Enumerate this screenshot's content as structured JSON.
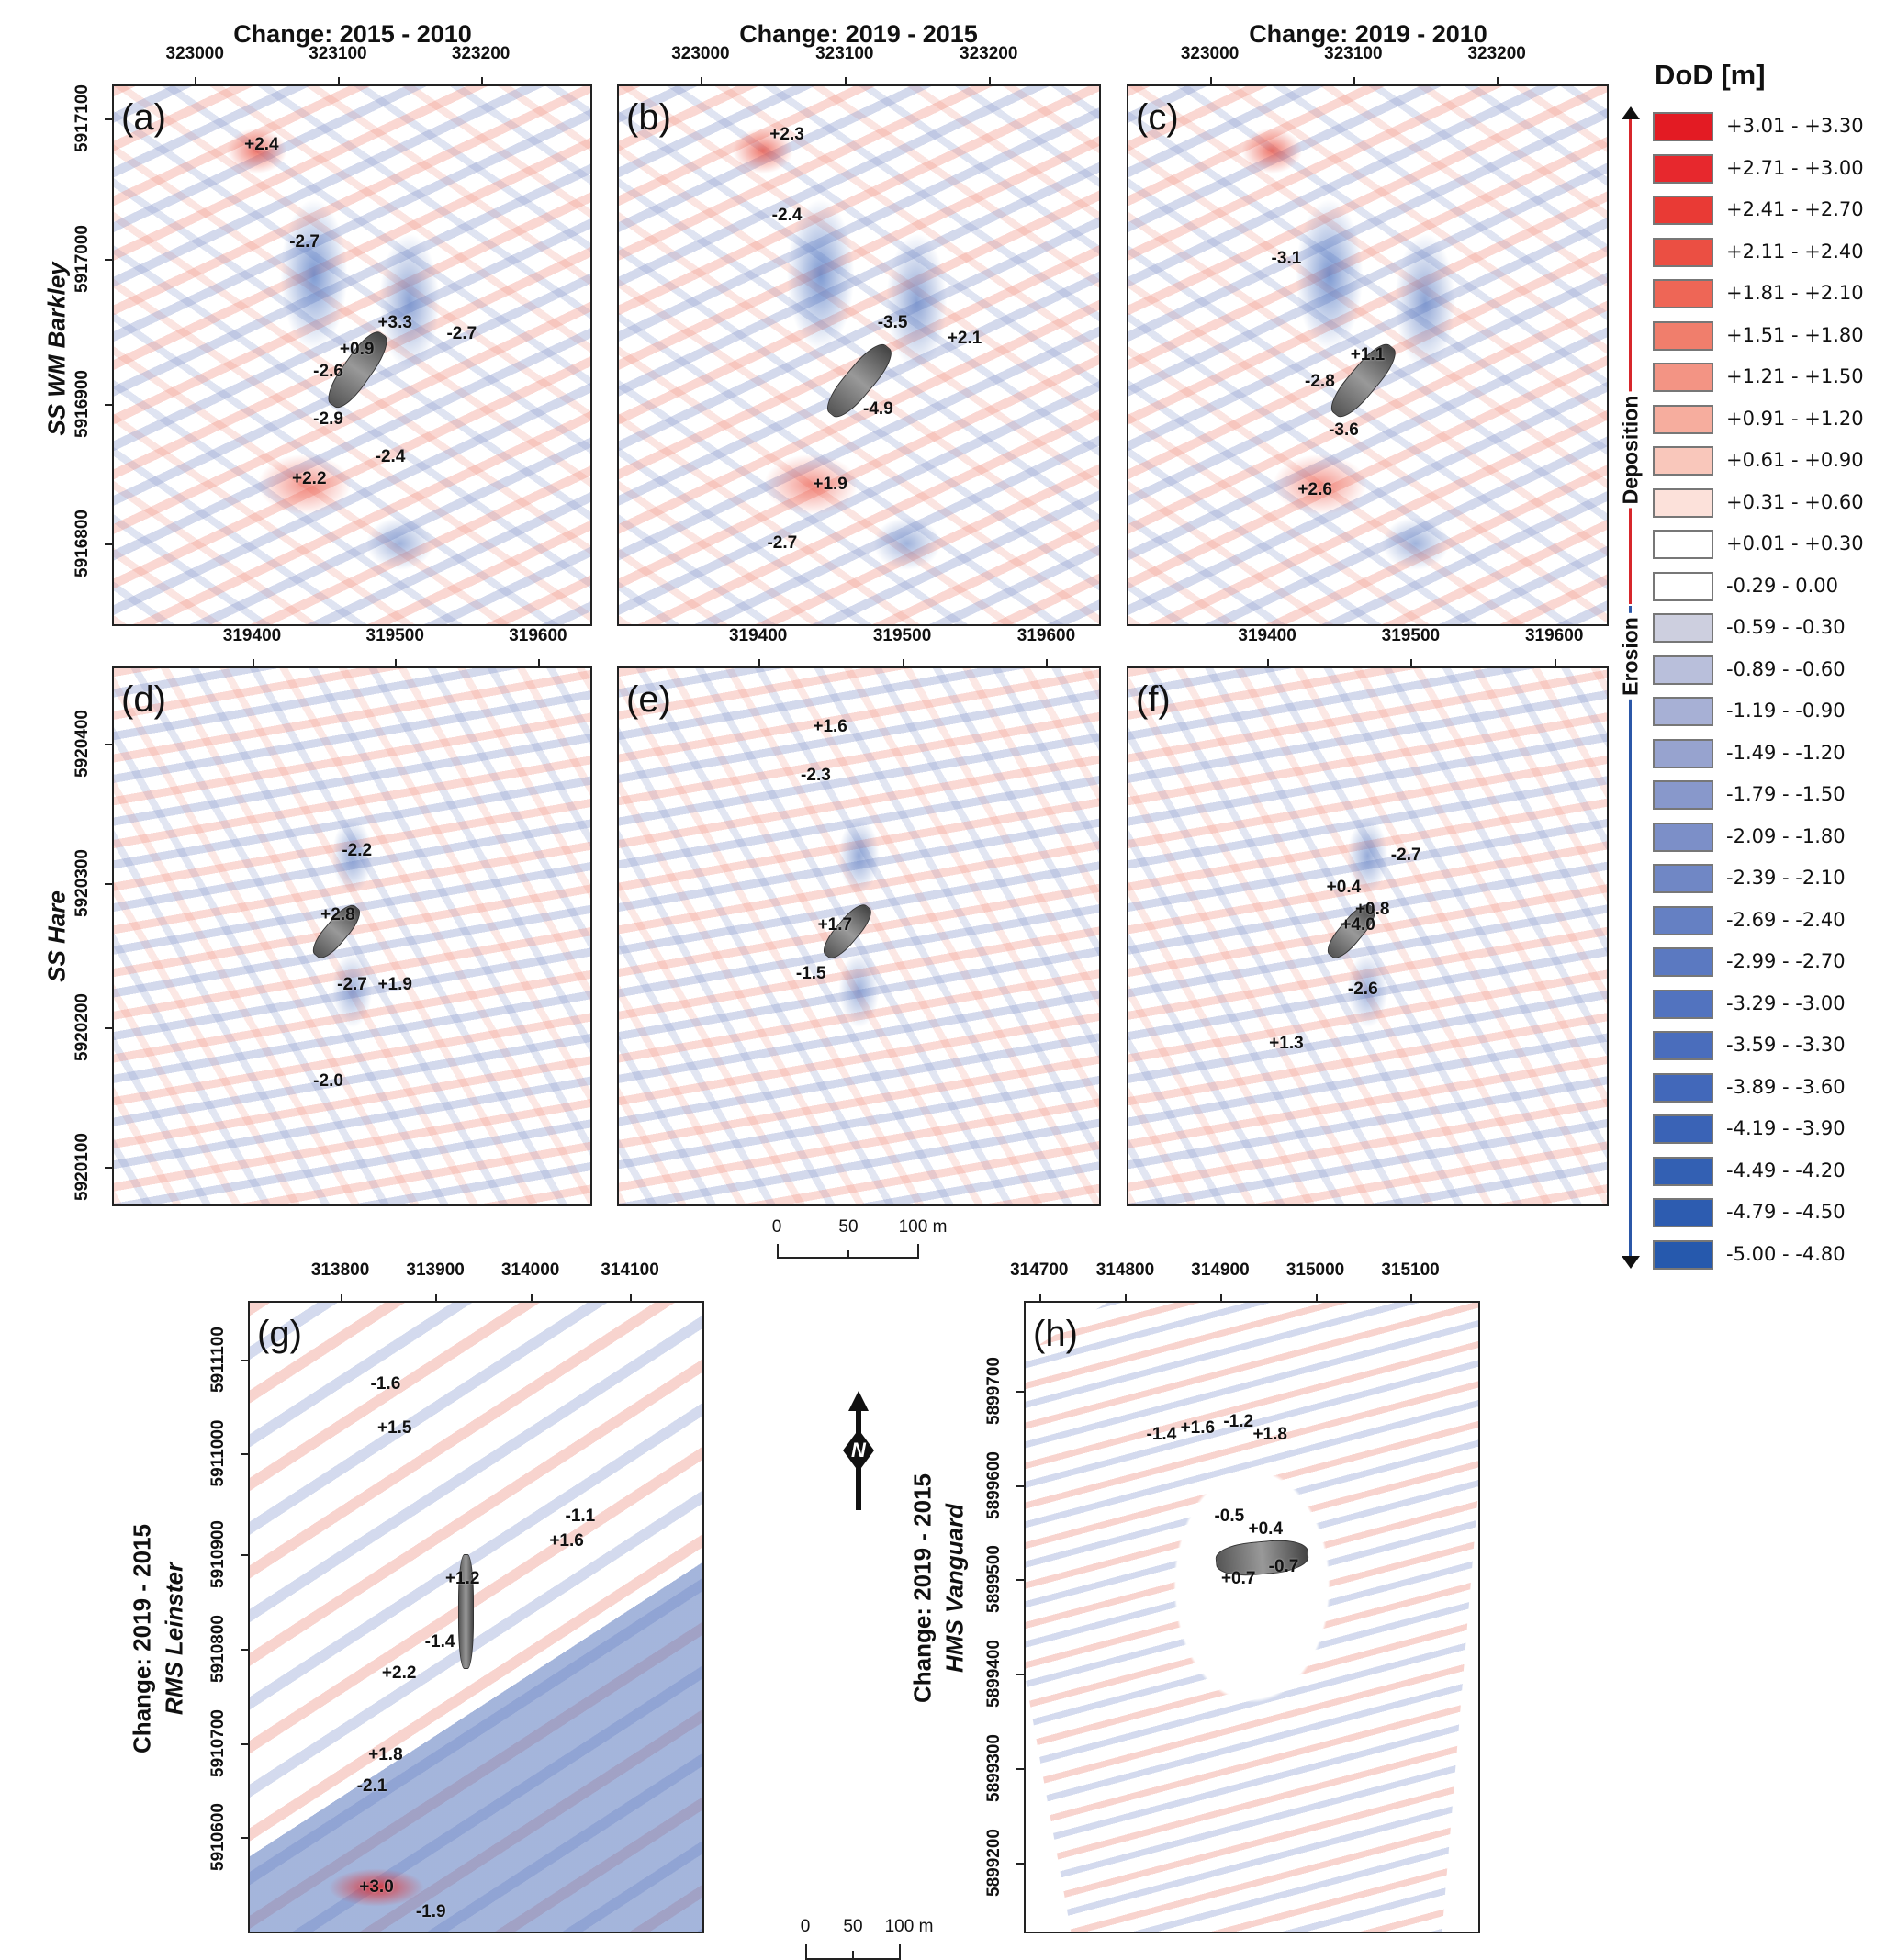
{
  "column_titles": [
    "Change: 2015 - 2010",
    "Change: 2019 - 2015",
    "Change: 2019 - 2010"
  ],
  "row_labels": [
    "SS WM Barkley",
    "SS Hare"
  ],
  "axes": {
    "barkley_x": [
      "323000",
      "323100",
      "323200"
    ],
    "barkley_y": [
      "5917100",
      "5917000",
      "5916900",
      "5916800"
    ],
    "hare_x": [
      "319400",
      "319500",
      "319600"
    ],
    "hare_y": [
      "5920400",
      "5920300",
      "5920200",
      "5920100"
    ],
    "leinster_x": [
      "313800",
      "313900",
      "314000",
      "314100"
    ],
    "leinster_y": [
      "5911100",
      "5911000",
      "5910900",
      "5910800",
      "5910700",
      "5910600"
    ],
    "vanguard_x": [
      "314700",
      "314800",
      "314900",
      "315000",
      "315100"
    ],
    "vanguard_y": [
      "5899700",
      "5899600",
      "5899500",
      "5899400",
      "5899300",
      "5899200"
    ]
  },
  "panels": [
    {
      "tag": "(a)",
      "labels": [
        "+2.4",
        "-2.7",
        "+3.3",
        "-2.7",
        "+0.9",
        "-2.6",
        "-2.9",
        "-2.4",
        "+2.2"
      ]
    },
    {
      "tag": "(b)",
      "labels": [
        "+2.3",
        "-2.4",
        "-3.5",
        "+2.1",
        "-4.9",
        "+1.9",
        "-2.7"
      ]
    },
    {
      "tag": "(c)",
      "labels": [
        "-3.1",
        "+1.1",
        "-2.8",
        "-3.6",
        "+2.6"
      ]
    },
    {
      "tag": "(d)",
      "labels": [
        "-2.2",
        "+2.8",
        "-2.7",
        "+1.9",
        "-2.0"
      ]
    },
    {
      "tag": "(e)",
      "labels": [
        "+1.6",
        "-2.3",
        "+1.7",
        "-1.5"
      ]
    },
    {
      "tag": "(f)",
      "labels": [
        "-2.7",
        "+0.4",
        "+0.8",
        "+4.0",
        "-2.6",
        "+1.3"
      ]
    },
    {
      "tag": "(g)",
      "labels": [
        "-1.6",
        "+1.5",
        "-1.1",
        "+1.6",
        "+1.2",
        "-1.4",
        "+2.2",
        "+1.8",
        "-2.1",
        "+3.0",
        "-1.9"
      ]
    },
    {
      "tag": "(h)",
      "labels": [
        "-1.4",
        "+1.6",
        "-1.2",
        "+1.8",
        "-0.5",
        "+0.4",
        "+0.7",
        "-0.7"
      ]
    }
  ],
  "bottom_titles": {
    "g": {
      "change": "Change: 2019 - 2015",
      "wreck": "RMS Leinster"
    },
    "h": {
      "change": "Change: 2019 - 2015",
      "wreck": "HMS Vanguard"
    }
  },
  "scale_bar": {
    "ticks": [
      "0",
      "50",
      "100 m"
    ]
  },
  "north_arrow": {
    "label": "N"
  },
  "legend": {
    "title": "DoD [m]",
    "deposition": "Deposition",
    "erosion": "Erosion",
    "deposition_color": "#d7262b",
    "erosion_color": "#2b57a8",
    "classes": [
      {
        "range": "+3.01 - +3.30",
        "color": "#e31b23"
      },
      {
        "range": "+2.71 - +3.00",
        "color": "#e7282d"
      },
      {
        "range": "+2.41 - +2.70",
        "color": "#e93a35"
      },
      {
        "range": "+2.11 - +2.40",
        "color": "#eb4f43"
      },
      {
        "range": "+1.81 - +2.10",
        "color": "#ee6656"
      },
      {
        "range": "+1.51 - +1.80",
        "color": "#f07e6c"
      },
      {
        "range": "+1.21 - +1.50",
        "color": "#f39484"
      },
      {
        "range": "+0.91 - +1.20",
        "color": "#f6ad9e"
      },
      {
        "range": "+0.61 - +0.90",
        "color": "#f9c7bb"
      },
      {
        "range": "+0.31 - +0.60",
        "color": "#fce1da"
      },
      {
        "range": "+0.01 - +0.30",
        "color": "#ffffff"
      },
      {
        "range": "-0.29 - 0.00",
        "color": "#ffffff"
      },
      {
        "range": "-0.59 - -0.30",
        "color": "#cdcfdf"
      },
      {
        "range": "-0.89 - -0.60",
        "color": "#b9bfdb"
      },
      {
        "range": "-1.19 - -0.90",
        "color": "#a7b0d5"
      },
      {
        "range": "-1.49 - -1.20",
        "color": "#97a3cf"
      },
      {
        "range": "-1.79 - -1.50",
        "color": "#8898cb"
      },
      {
        "range": "-2.09 - -1.80",
        "color": "#7c8fc8"
      },
      {
        "range": "-2.39 - -2.10",
        "color": "#7087c5"
      },
      {
        "range": "-2.69 - -2.40",
        "color": "#6580c3"
      },
      {
        "range": "-2.99 - -2.70",
        "color": "#5b79c1"
      },
      {
        "range": "-3.29 - -3.00",
        "color": "#5273bf"
      },
      {
        "range": "-3.59 - -3.30",
        "color": "#4a6dbc"
      },
      {
        "range": "-3.89 - -3.60",
        "color": "#4268ba"
      },
      {
        "range": "-4.19 - -3.90",
        "color": "#3a63b6"
      },
      {
        "range": "-4.49 - -4.20",
        "color": "#3360b3"
      },
      {
        "range": "-4.79 - -4.50",
        "color": "#2d5cb0"
      },
      {
        "range": "-5.00 - -4.80",
        "color": "#2659ad"
      }
    ]
  }
}
